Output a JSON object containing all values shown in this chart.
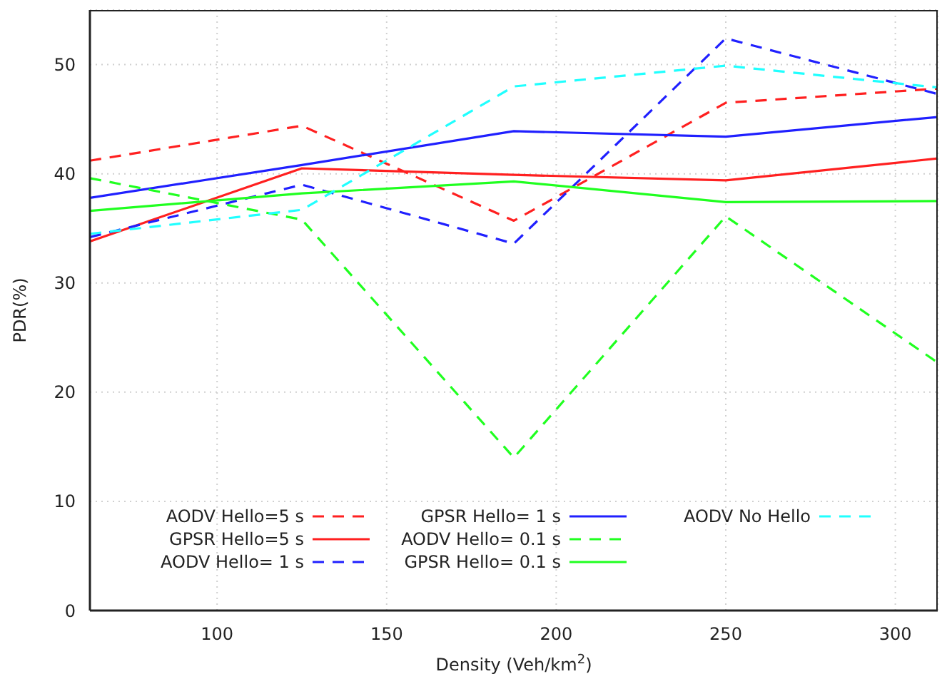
{
  "chart_data": {
    "type": "line",
    "xlabel": "Density (Veh/km$^{2}$)",
    "ylabel": "PDR(%)",
    "x": [
      62.5,
      125,
      187.5,
      250,
      312.5
    ],
    "xlim": [
      62.5,
      312.5
    ],
    "xticks": [
      100,
      150,
      200,
      250,
      300
    ],
    "ylim": [
      0,
      55
    ],
    "yticks": [
      0,
      10,
      20,
      30,
      40,
      50
    ],
    "grid": true,
    "legend": "bottom",
    "marker": "none",
    "series": [
      {
        "name": "AODV Hello=5 s",
        "color": "#ff2020",
        "line_style": "dashed",
        "values": [
          41.2,
          44.4,
          35.7,
          46.5,
          47.8
        ]
      },
      {
        "name": "GPSR Hello=5 s",
        "color": "#ff2020",
        "line_style": "solid",
        "values": [
          33.8,
          40.5,
          39.9,
          39.4,
          41.4
        ]
      },
      {
        "name": "AODV Hello= 1 s",
        "color": "#2020ff",
        "line_style": "dashed",
        "values": [
          34.2,
          39.0,
          33.6,
          52.4,
          47.3
        ]
      },
      {
        "name": "GPSR Hello= 1 s",
        "color": "#2020ff",
        "line_style": "solid",
        "values": [
          37.8,
          40.8,
          43.9,
          43.4,
          45.2
        ]
      },
      {
        "name": "AODV Hello= 0.1 s",
        "color": "#20ff20",
        "line_style": "dashed",
        "values": [
          39.6,
          35.8,
          14.0,
          36.1,
          22.7
        ]
      },
      {
        "name": "GPSR Hello= 0.1 s",
        "color": "#20ff20",
        "line_style": "solid",
        "values": [
          36.6,
          38.2,
          39.3,
          37.4,
          37.5
        ]
      },
      {
        "name": "AODV No Hello",
        "color": "#20ffff",
        "line_style": "dashed",
        "values": [
          34.5,
          36.7,
          48.0,
          49.9,
          47.9
        ]
      }
    ]
  }
}
